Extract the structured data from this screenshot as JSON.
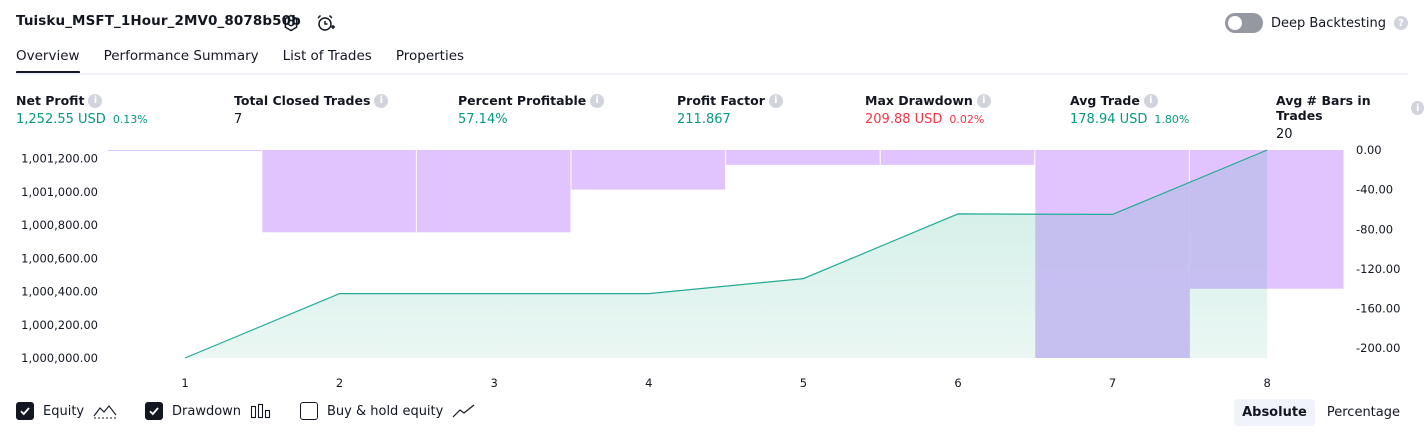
{
  "header": {
    "strategy_name": "Tuisku_MSFT_1Hour_2MV0_8078b50b",
    "deep_backtesting_label": "Deep Backtesting"
  },
  "tabs": [
    {
      "label": "Overview",
      "active": true
    },
    {
      "label": "Performance Summary",
      "active": false
    },
    {
      "label": "List of Trades",
      "active": false
    },
    {
      "label": "Properties",
      "active": false
    }
  ],
  "metrics": [
    {
      "label": "Net Profit",
      "value": "1,252.55 USD",
      "pct": "0.13%",
      "color": "green"
    },
    {
      "label": "Total Closed Trades",
      "value": "7",
      "pct": "",
      "color": "dark"
    },
    {
      "label": "Percent Profitable",
      "value": "57.14%",
      "pct": "",
      "color": "green"
    },
    {
      "label": "Profit Factor",
      "value": "211.867",
      "pct": "",
      "color": "green"
    },
    {
      "label": "Max Drawdown",
      "value": "209.88 USD",
      "pct": "0.02%",
      "color": "red"
    },
    {
      "label": "Avg Trade",
      "value": "178.94 USD",
      "pct": "1.80%",
      "color": "green"
    },
    {
      "label": "Avg # Bars in Trades",
      "value": "20",
      "pct": "",
      "color": "dark"
    }
  ],
  "chart_data": {
    "type": "area",
    "x": [
      1,
      2,
      3,
      4,
      5,
      6,
      7,
      8
    ],
    "x_tick_labels": [
      "1",
      "2",
      "3",
      "4",
      "5",
      "6",
      "7",
      "8"
    ],
    "left_axis": {
      "ticks": [
        "1,000,000.00",
        "1,000,200.00",
        "1,000,400.00",
        "1,000,600.00",
        "1,000,800.00",
        "1,001,000.00",
        "1,001,200.00"
      ],
      "range": [
        1000000,
        1001252.55
      ]
    },
    "right_axis": {
      "ticks": [
        "0.00",
        "-40.00",
        "-80.00",
        "-120.00",
        "-160.00",
        "-200.00"
      ],
      "range": [
        0,
        -209.88
      ]
    },
    "series": [
      {
        "name": "Equity",
        "kind": "area",
        "values": [
          1000000,
          1000388,
          1000388,
          1000388,
          1000478,
          1000868,
          1000865,
          1001252.55
        ]
      },
      {
        "name": "Drawdown",
        "kind": "bar",
        "bar_x": [
          0.5,
          1.5,
          2.5,
          3.5,
          4.5,
          5.5,
          6.5,
          7.5
        ],
        "values": [
          0,
          -83,
          -83,
          -40,
          -15,
          -15,
          -209.88,
          -140
        ]
      }
    ],
    "colors": {
      "equity_line": "#22ab94",
      "equity_fill_top": "#c9ebe2",
      "equity_fill_bottom": "#e8f6f2",
      "drawdown_fill": "#e1c4fd",
      "drawdown_overlap": "#c4bdf0"
    },
    "legend_placement": "bottom-left"
  },
  "legend": [
    {
      "label": "Equity",
      "checked": true,
      "icon": "equity-icon"
    },
    {
      "label": "Drawdown",
      "checked": true,
      "icon": "drawdown-bars-icon"
    },
    {
      "label": "Buy & hold equity",
      "checked": false,
      "icon": "buy-hold-line-icon"
    }
  ],
  "scale_toggle": {
    "absolute_label": "Absolute",
    "percentage_label": "Percentage",
    "selected": "Absolute"
  }
}
